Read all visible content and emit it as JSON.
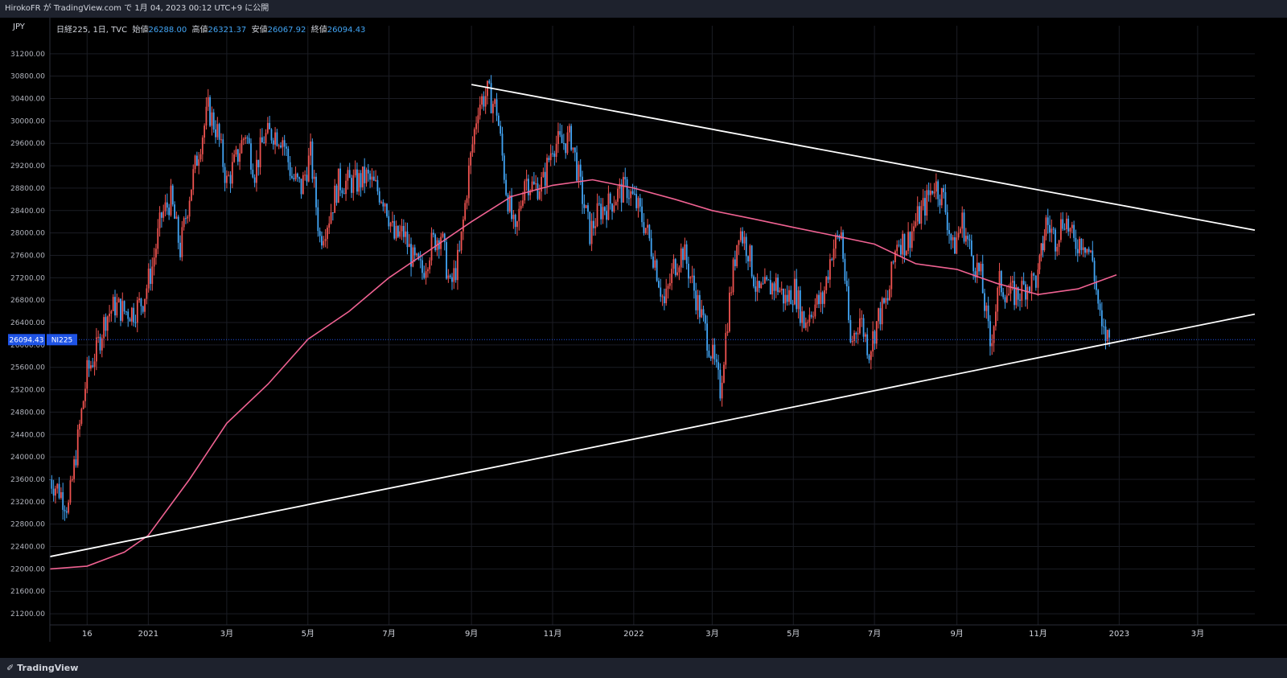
{
  "header": {
    "published": "HirokoFR が TradingView.com で 1月 04, 2023 00:12 UTC+9 に公開"
  },
  "legend": {
    "symbol": "日経225, 1日, TVC",
    "open_label": "始値",
    "open": "26288.00",
    "high_label": "高値",
    "high": "26321.37",
    "low_label": "安値",
    "low": "26067.92",
    "close_label": "終値",
    "close": "26094.43"
  },
  "footer": {
    "brand": "TradingView",
    "brand_icon": "tradingview-logo-icon"
  },
  "colors": {
    "background": "#000000",
    "up": "#ef5350",
    "down": "#42a5f5",
    "ma": "#f06292",
    "trendline": "#ffffff",
    "price_badge": "#1e53e5"
  },
  "chart_data": {
    "type": "candlestick",
    "currency": "JPY",
    "symbol_badge": "NI225",
    "last_price": "26094.43",
    "y_ticks": [
      "31200.00",
      "30800.00",
      "30400.00",
      "30000.00",
      "29600.00",
      "29200.00",
      "28800.00",
      "28400.00",
      "28000.00",
      "27600.00",
      "27200.00",
      "26800.00",
      "26400.00",
      "26000.00",
      "25600.00",
      "25200.00",
      "24800.00",
      "24400.00",
      "24000.00",
      "23600.00",
      "23200.00",
      "22800.00",
      "22400.00",
      "22000.00",
      "21600.00",
      "21200.00"
    ],
    "ylim": [
      21000,
      31700
    ],
    "x_ticks": [
      {
        "label": "16",
        "date": "2020-11-16"
      },
      {
        "label": "2021",
        "date": "2021-01-01"
      },
      {
        "label": "3月",
        "date": "2021-03-01"
      },
      {
        "label": "5月",
        "date": "2021-05-01"
      },
      {
        "label": "7月",
        "date": "2021-07-01"
      },
      {
        "label": "9月",
        "date": "2021-09-01"
      },
      {
        "label": "11月",
        "date": "2021-11-01"
      },
      {
        "label": "2022",
        "date": "2022-01-01"
      },
      {
        "label": "3月",
        "date": "2022-03-01"
      },
      {
        "label": "5月",
        "date": "2022-05-01"
      },
      {
        "label": "7月",
        "date": "2022-07-01"
      },
      {
        "label": "9月",
        "date": "2022-09-01"
      },
      {
        "label": "11月",
        "date": "2022-11-01"
      },
      {
        "label": "2023",
        "date": "2023-01-01"
      },
      {
        "label": "3月",
        "date": "2023-03-01"
      }
    ],
    "xlim": [
      "2020-10-19",
      "2023-04-13"
    ],
    "close_series": [
      [
        "2020-10-19",
        23600
      ],
      [
        "2020-10-26",
        23400
      ],
      [
        "2020-11-02",
        23100
      ],
      [
        "2020-11-09",
        24300
      ],
      [
        "2020-11-16",
        25500
      ],
      [
        "2020-11-23",
        25900
      ],
      [
        "2020-11-30",
        26500
      ],
      [
        "2020-12-07",
        26700
      ],
      [
        "2020-12-14",
        26600
      ],
      [
        "2020-12-21",
        26600
      ],
      [
        "2020-12-28",
        26800
      ],
      [
        "2021-01-04",
        27400
      ],
      [
        "2021-01-11",
        28300
      ],
      [
        "2021-01-18",
        28600
      ],
      [
        "2021-01-25",
        27700
      ],
      [
        "2021-02-01",
        28700
      ],
      [
        "2021-02-08",
        29500
      ],
      [
        "2021-02-15",
        30200
      ],
      [
        "2021-02-22",
        29800
      ],
      [
        "2021-03-01",
        28900
      ],
      [
        "2021-03-08",
        29300
      ],
      [
        "2021-03-15",
        29800
      ],
      [
        "2021-03-22",
        29100
      ],
      [
        "2021-03-29",
        29700
      ],
      [
        "2021-04-05",
        29800
      ],
      [
        "2021-04-12",
        29700
      ],
      [
        "2021-04-19",
        29000
      ],
      [
        "2021-04-26",
        28800
      ],
      [
        "2021-05-03",
        29400
      ],
      [
        "2021-05-10",
        27900
      ],
      [
        "2021-05-17",
        28300
      ],
      [
        "2021-05-24",
        28900
      ],
      [
        "2021-05-31",
        28900
      ],
      [
        "2021-06-07",
        28900
      ],
      [
        "2021-06-14",
        29000
      ],
      [
        "2021-06-21",
        28800
      ],
      [
        "2021-06-28",
        28600
      ],
      [
        "2021-07-05",
        27900
      ],
      [
        "2021-07-12",
        28000
      ],
      [
        "2021-07-19",
        27500
      ],
      [
        "2021-07-26",
        27300
      ],
      [
        "2021-08-02",
        27800
      ],
      [
        "2021-08-09",
        28000
      ],
      [
        "2021-08-16",
        27000
      ],
      [
        "2021-08-23",
        27600
      ],
      [
        "2021-08-30",
        29100
      ],
      [
        "2021-09-06",
        30300
      ],
      [
        "2021-09-13",
        30500
      ],
      [
        "2021-09-20",
        30200
      ],
      [
        "2021-09-27",
        28800
      ],
      [
        "2021-10-04",
        27900
      ],
      [
        "2021-10-11",
        29000
      ],
      [
        "2021-10-18",
        28800
      ],
      [
        "2021-10-25",
        28900
      ],
      [
        "2021-11-01",
        29600
      ],
      [
        "2021-11-08",
        29600
      ],
      [
        "2021-11-15",
        29700
      ],
      [
        "2021-11-22",
        28800
      ],
      [
        "2021-11-29",
        28000
      ],
      [
        "2021-12-06",
        28400
      ],
      [
        "2021-12-13",
        28500
      ],
      [
        "2021-12-20",
        28700
      ],
      [
        "2021-12-27",
        28800
      ],
      [
        "2022-01-03",
        28500
      ],
      [
        "2022-01-10",
        28100
      ],
      [
        "2022-01-17",
        27500
      ],
      [
        "2022-01-24",
        26700
      ],
      [
        "2022-01-31",
        27400
      ],
      [
        "2022-02-07",
        27700
      ],
      [
        "2022-02-14",
        27100
      ],
      [
        "2022-02-21",
        26500
      ],
      [
        "2022-02-28",
        25900
      ],
      [
        "2022-03-07",
        25200
      ],
      [
        "2022-03-14",
        26800
      ],
      [
        "2022-03-21",
        28100
      ],
      [
        "2022-03-28",
        27700
      ],
      [
        "2022-04-04",
        26900
      ],
      [
        "2022-04-11",
        27000
      ],
      [
        "2022-04-18",
        27100
      ],
      [
        "2022-04-25",
        26800
      ],
      [
        "2022-05-02",
        27000
      ],
      [
        "2022-05-09",
        26400
      ],
      [
        "2022-05-16",
        26700
      ],
      [
        "2022-05-23",
        26800
      ],
      [
        "2022-05-30",
        27700
      ],
      [
        "2022-06-06",
        28000
      ],
      [
        "2022-06-13",
        26000
      ],
      [
        "2022-06-20",
        26500
      ],
      [
        "2022-06-27",
        25900
      ],
      [
        "2022-07-04",
        26500
      ],
      [
        "2022-07-11",
        26800
      ],
      [
        "2022-07-18",
        27900
      ],
      [
        "2022-07-25",
        27800
      ],
      [
        "2022-08-01",
        28200
      ],
      [
        "2022-08-08",
        28500
      ],
      [
        "2022-08-15",
        28900
      ],
      [
        "2022-08-22",
        28600
      ],
      [
        "2022-08-29",
        27700
      ],
      [
        "2022-09-05",
        28200
      ],
      [
        "2022-09-12",
        27600
      ],
      [
        "2022-09-19",
        27200
      ],
      [
        "2022-09-26",
        26000
      ],
      [
        "2022-10-03",
        27100
      ],
      [
        "2022-10-10",
        26900
      ],
      [
        "2022-10-17",
        26900
      ],
      [
        "2022-10-24",
        27100
      ],
      [
        "2022-11-01",
        27200
      ],
      [
        "2022-11-07",
        28200
      ],
      [
        "2022-11-14",
        27900
      ],
      [
        "2022-11-21",
        28300
      ],
      [
        "2022-11-28",
        27800
      ],
      [
        "2022-12-05",
        27900
      ],
      [
        "2022-12-12",
        27500
      ],
      [
        "2022-12-19",
        26200
      ],
      [
        "2022-12-26",
        26094
      ]
    ],
    "moving_average": [
      [
        "2020-10-19",
        22000
      ],
      [
        "2020-11-16",
        22050
      ],
      [
        "2020-12-14",
        22300
      ],
      [
        "2021-01-01",
        22600
      ],
      [
        "2021-02-01",
        23600
      ],
      [
        "2021-03-01",
        24600
      ],
      [
        "2021-04-01",
        25300
      ],
      [
        "2021-05-01",
        26100
      ],
      [
        "2021-06-01",
        26600
      ],
      [
        "2021-07-01",
        27200
      ],
      [
        "2021-08-01",
        27700
      ],
      [
        "2021-09-01",
        28200
      ],
      [
        "2021-10-01",
        28650
      ],
      [
        "2021-11-01",
        28850
      ],
      [
        "2021-12-01",
        28950
      ],
      [
        "2022-01-01",
        28800
      ],
      [
        "2022-02-01",
        28600
      ],
      [
        "2022-03-01",
        28400
      ],
      [
        "2022-04-01",
        28250
      ],
      [
        "2022-05-01",
        28100
      ],
      [
        "2022-06-01",
        27950
      ],
      [
        "2022-07-01",
        27800
      ],
      [
        "2022-08-01",
        27450
      ],
      [
        "2022-09-01",
        27350
      ],
      [
        "2022-10-01",
        27100
      ],
      [
        "2022-11-01",
        26900
      ],
      [
        "2022-12-01",
        27000
      ],
      [
        "2022-12-30",
        27250
      ]
    ],
    "trendlines": [
      {
        "name": "upper",
        "from": [
          "2021-09-01",
          30650
        ],
        "to": [
          "2023-04-13",
          28050
        ]
      },
      {
        "name": "lower",
        "from": [
          "2020-10-19",
          22220
        ],
        "to": [
          "2023-04-13",
          26550
        ]
      }
    ],
    "grid": true,
    "legend_position": "top-left"
  }
}
